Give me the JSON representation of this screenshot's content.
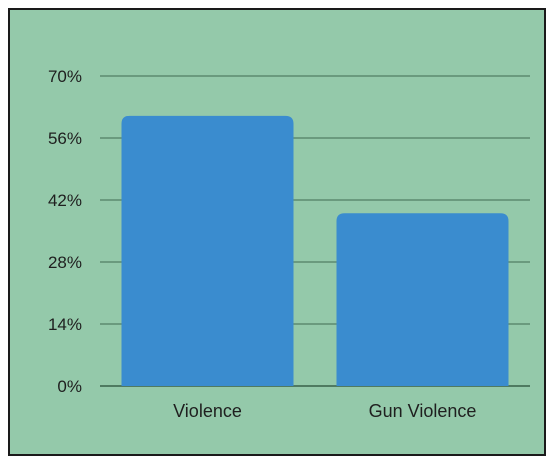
{
  "chart_data": {
    "type": "bar",
    "title": "",
    "xlabel": "",
    "ylabel": "",
    "categories": [
      "Violence",
      "Gun Violence"
    ],
    "values": [
      61,
      39
    ],
    "ylim": [
      0,
      70
    ],
    "yticks": [
      "0%",
      "14%",
      "28%",
      "42%",
      "56%",
      "70%"
    ],
    "grid": true,
    "legend": "none",
    "colors": {
      "bar": "#3a8ccf",
      "background": "#94c9aa",
      "grid": "#5d8a6f"
    }
  }
}
